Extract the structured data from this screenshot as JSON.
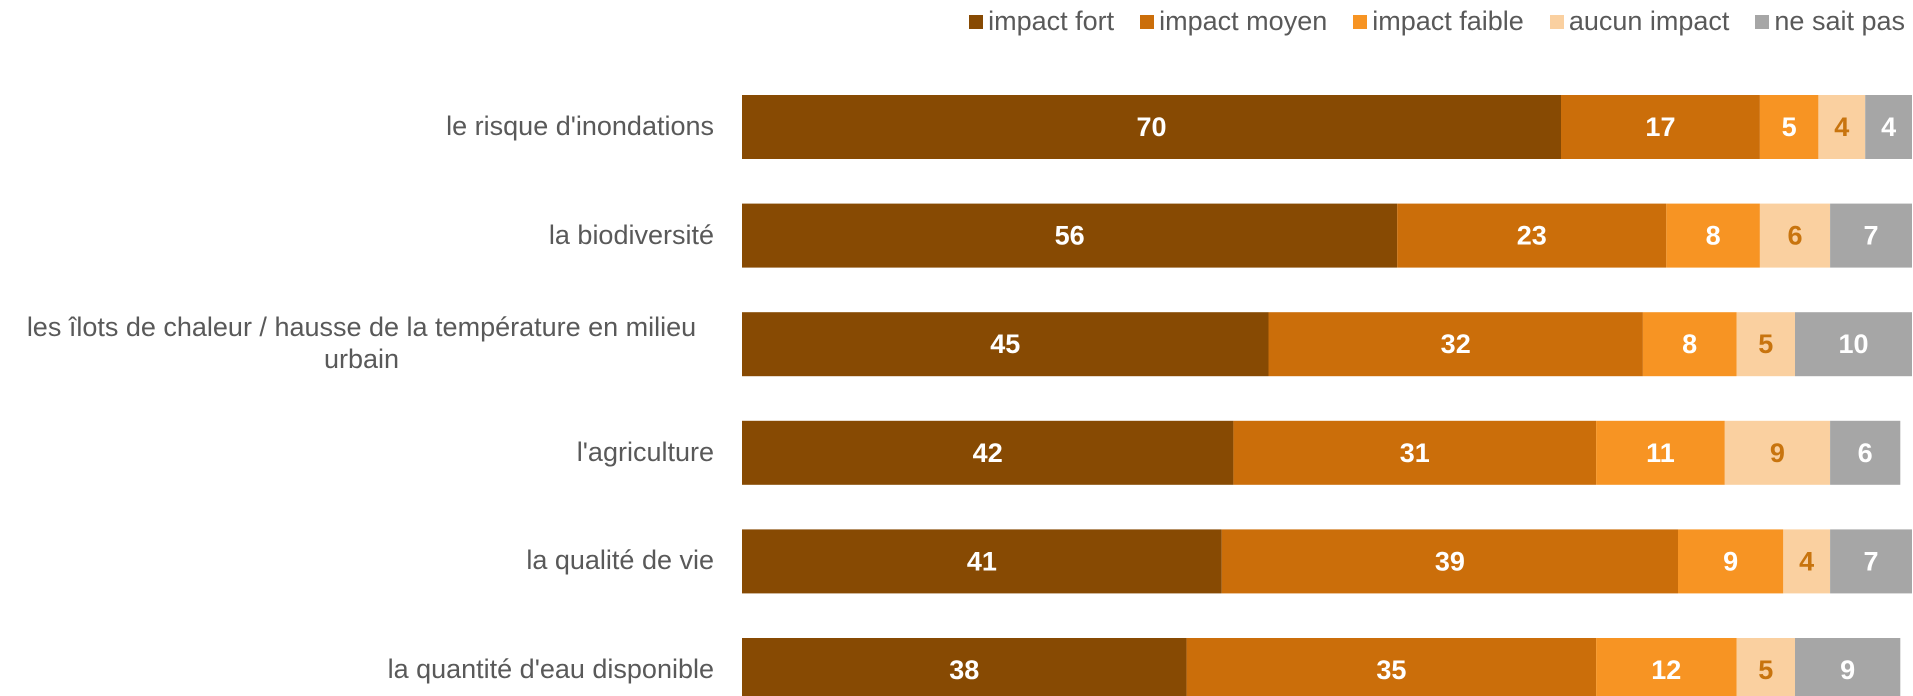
{
  "chart_data": {
    "type": "stacked-bar-horizontal",
    "categories": [
      "le risque d'inondations",
      "la biodiversité",
      "les îlots de chaleur / hausse de la température en milieu urbain",
      "l'agriculture",
      "la qualité de vie",
      "la quantité d'eau disponible"
    ],
    "series": [
      {
        "name": "impact fort",
        "color": "#874a03",
        "label_color": "#ffffff",
        "values": [
          70,
          56,
          45,
          42,
          41,
          38
        ]
      },
      {
        "name": "impact moyen",
        "color": "#cb6e0a",
        "label_color": "#ffffff",
        "values": [
          17,
          23,
          32,
          31,
          39,
          35
        ]
      },
      {
        "name": "impact faible",
        "color": "#f79423",
        "label_color": "#ffffff",
        "values": [
          5,
          8,
          8,
          11,
          9,
          12
        ]
      },
      {
        "name": "aucun impact",
        "color": "#fad0a0",
        "label_color": "#c8740e",
        "values": [
          4,
          6,
          5,
          9,
          4,
          5
        ]
      },
      {
        "name": "ne sait pas",
        "color": "#a6a6a6",
        "label_color": "#ffffff",
        "values": [
          4,
          7,
          10,
          6,
          7,
          9
        ]
      }
    ],
    "xlim": [
      0,
      100
    ],
    "legend": "top-right"
  }
}
